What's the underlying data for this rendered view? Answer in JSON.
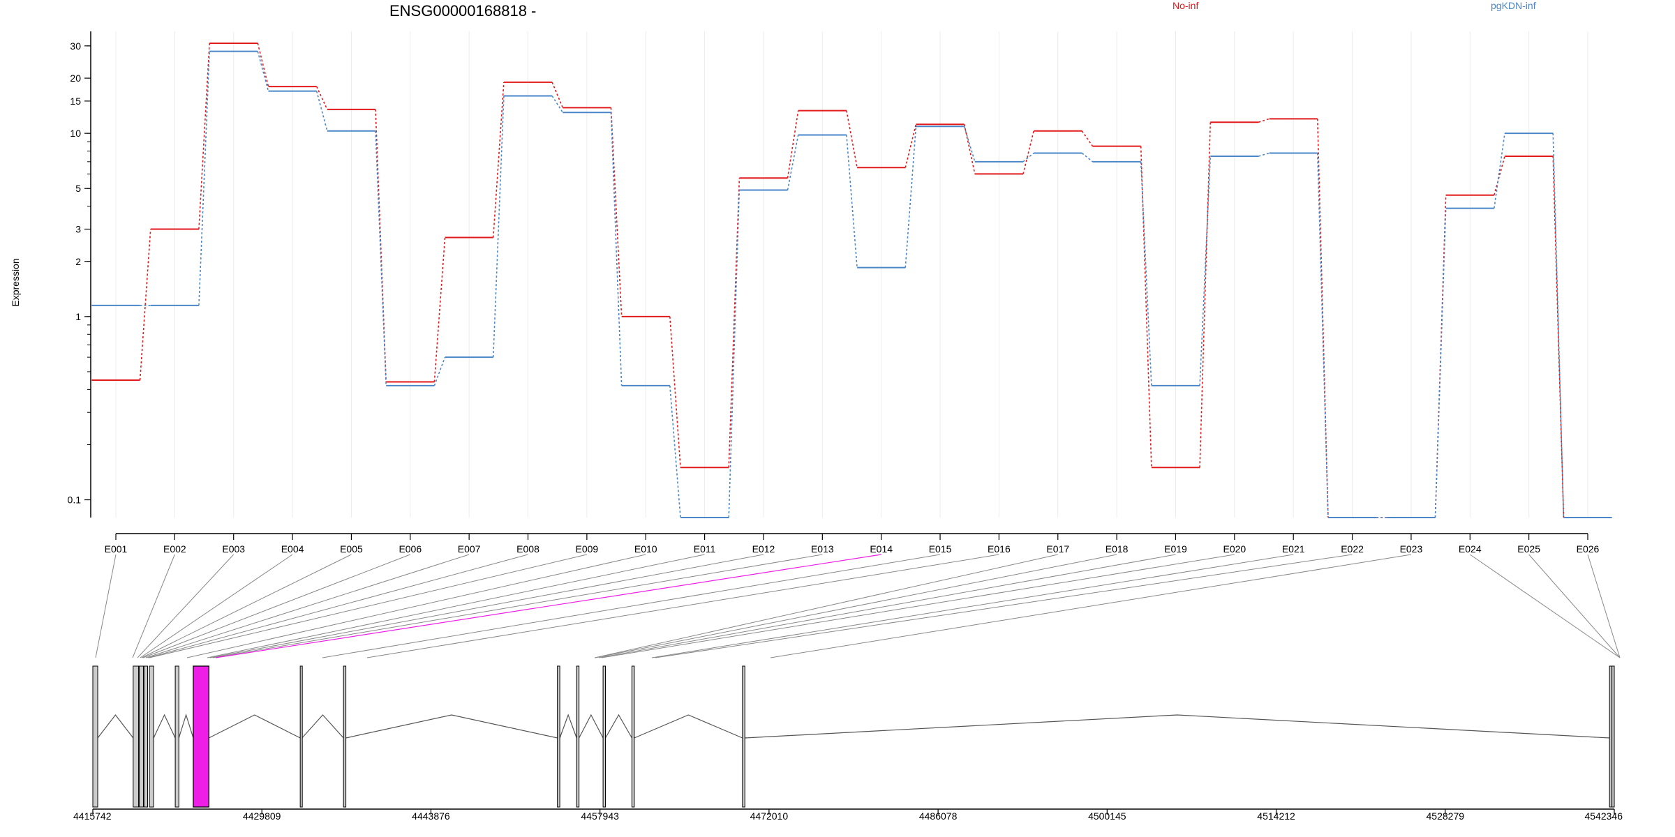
{
  "title": "ENSG00000168818 -",
  "chart_data": {
    "type": "line",
    "title": "ENSG00000168818 -",
    "ylabel": "Expression",
    "yscale": "log",
    "ylim": [
      0.08,
      36
    ],
    "yticks": [
      0.1,
      1,
      2,
      3,
      5,
      10,
      15,
      20,
      30
    ],
    "ytick_labels": [
      "0.1",
      "1",
      "2",
      "3",
      "5",
      "10",
      "15",
      "20",
      "30"
    ],
    "categories": [
      "E001",
      "E002",
      "E003",
      "E004",
      "E005",
      "E006",
      "E007",
      "E008",
      "E009",
      "E010",
      "E011",
      "E012",
      "E013",
      "E014",
      "E015",
      "E016",
      "E017",
      "E018",
      "E019",
      "E020",
      "E021",
      "E022",
      "E023",
      "E024",
      "E025",
      "E026"
    ],
    "series": [
      {
        "name": "No-inf",
        "color": "#e31a1c",
        "values": [
          0.45,
          3.0,
          31.0,
          18.0,
          13.5,
          0.44,
          2.7,
          19.0,
          13.8,
          1.0,
          0.15,
          5.7,
          13.3,
          6.5,
          11.2,
          6.0,
          10.3,
          8.5,
          0.15,
          11.5,
          12.0,
          0.08,
          0.08,
          4.6,
          7.5,
          0.08
        ]
      },
      {
        "name": "pgKDN-inf",
        "color": "#4a86c8",
        "values": [
          1.15,
          1.15,
          28.0,
          17.0,
          10.3,
          0.42,
          0.6,
          16.0,
          13.0,
          0.42,
          0.08,
          4.9,
          9.8,
          1.85,
          10.9,
          7.0,
          7.8,
          7.0,
          0.42,
          7.5,
          7.8,
          0.08,
          0.08,
          3.9,
          10.0,
          0.08
        ]
      }
    ],
    "highlighted_exon": "E014",
    "genome_axis": {
      "ticks": [
        4415742,
        4429809,
        4443876,
        4457943,
        4472010,
        4486078,
        4500145,
        4514212,
        4528279,
        4542346
      ],
      "range": [
        4415742,
        4542346
      ]
    },
    "grid": true,
    "legend_position": "top"
  },
  "colors": {
    "no_inf": "#e31a1c",
    "pgkdn_inf": "#4a86c8",
    "highlight": "#ee1ee6",
    "exon_fill": "#cccccc",
    "grid": "#ececec"
  }
}
